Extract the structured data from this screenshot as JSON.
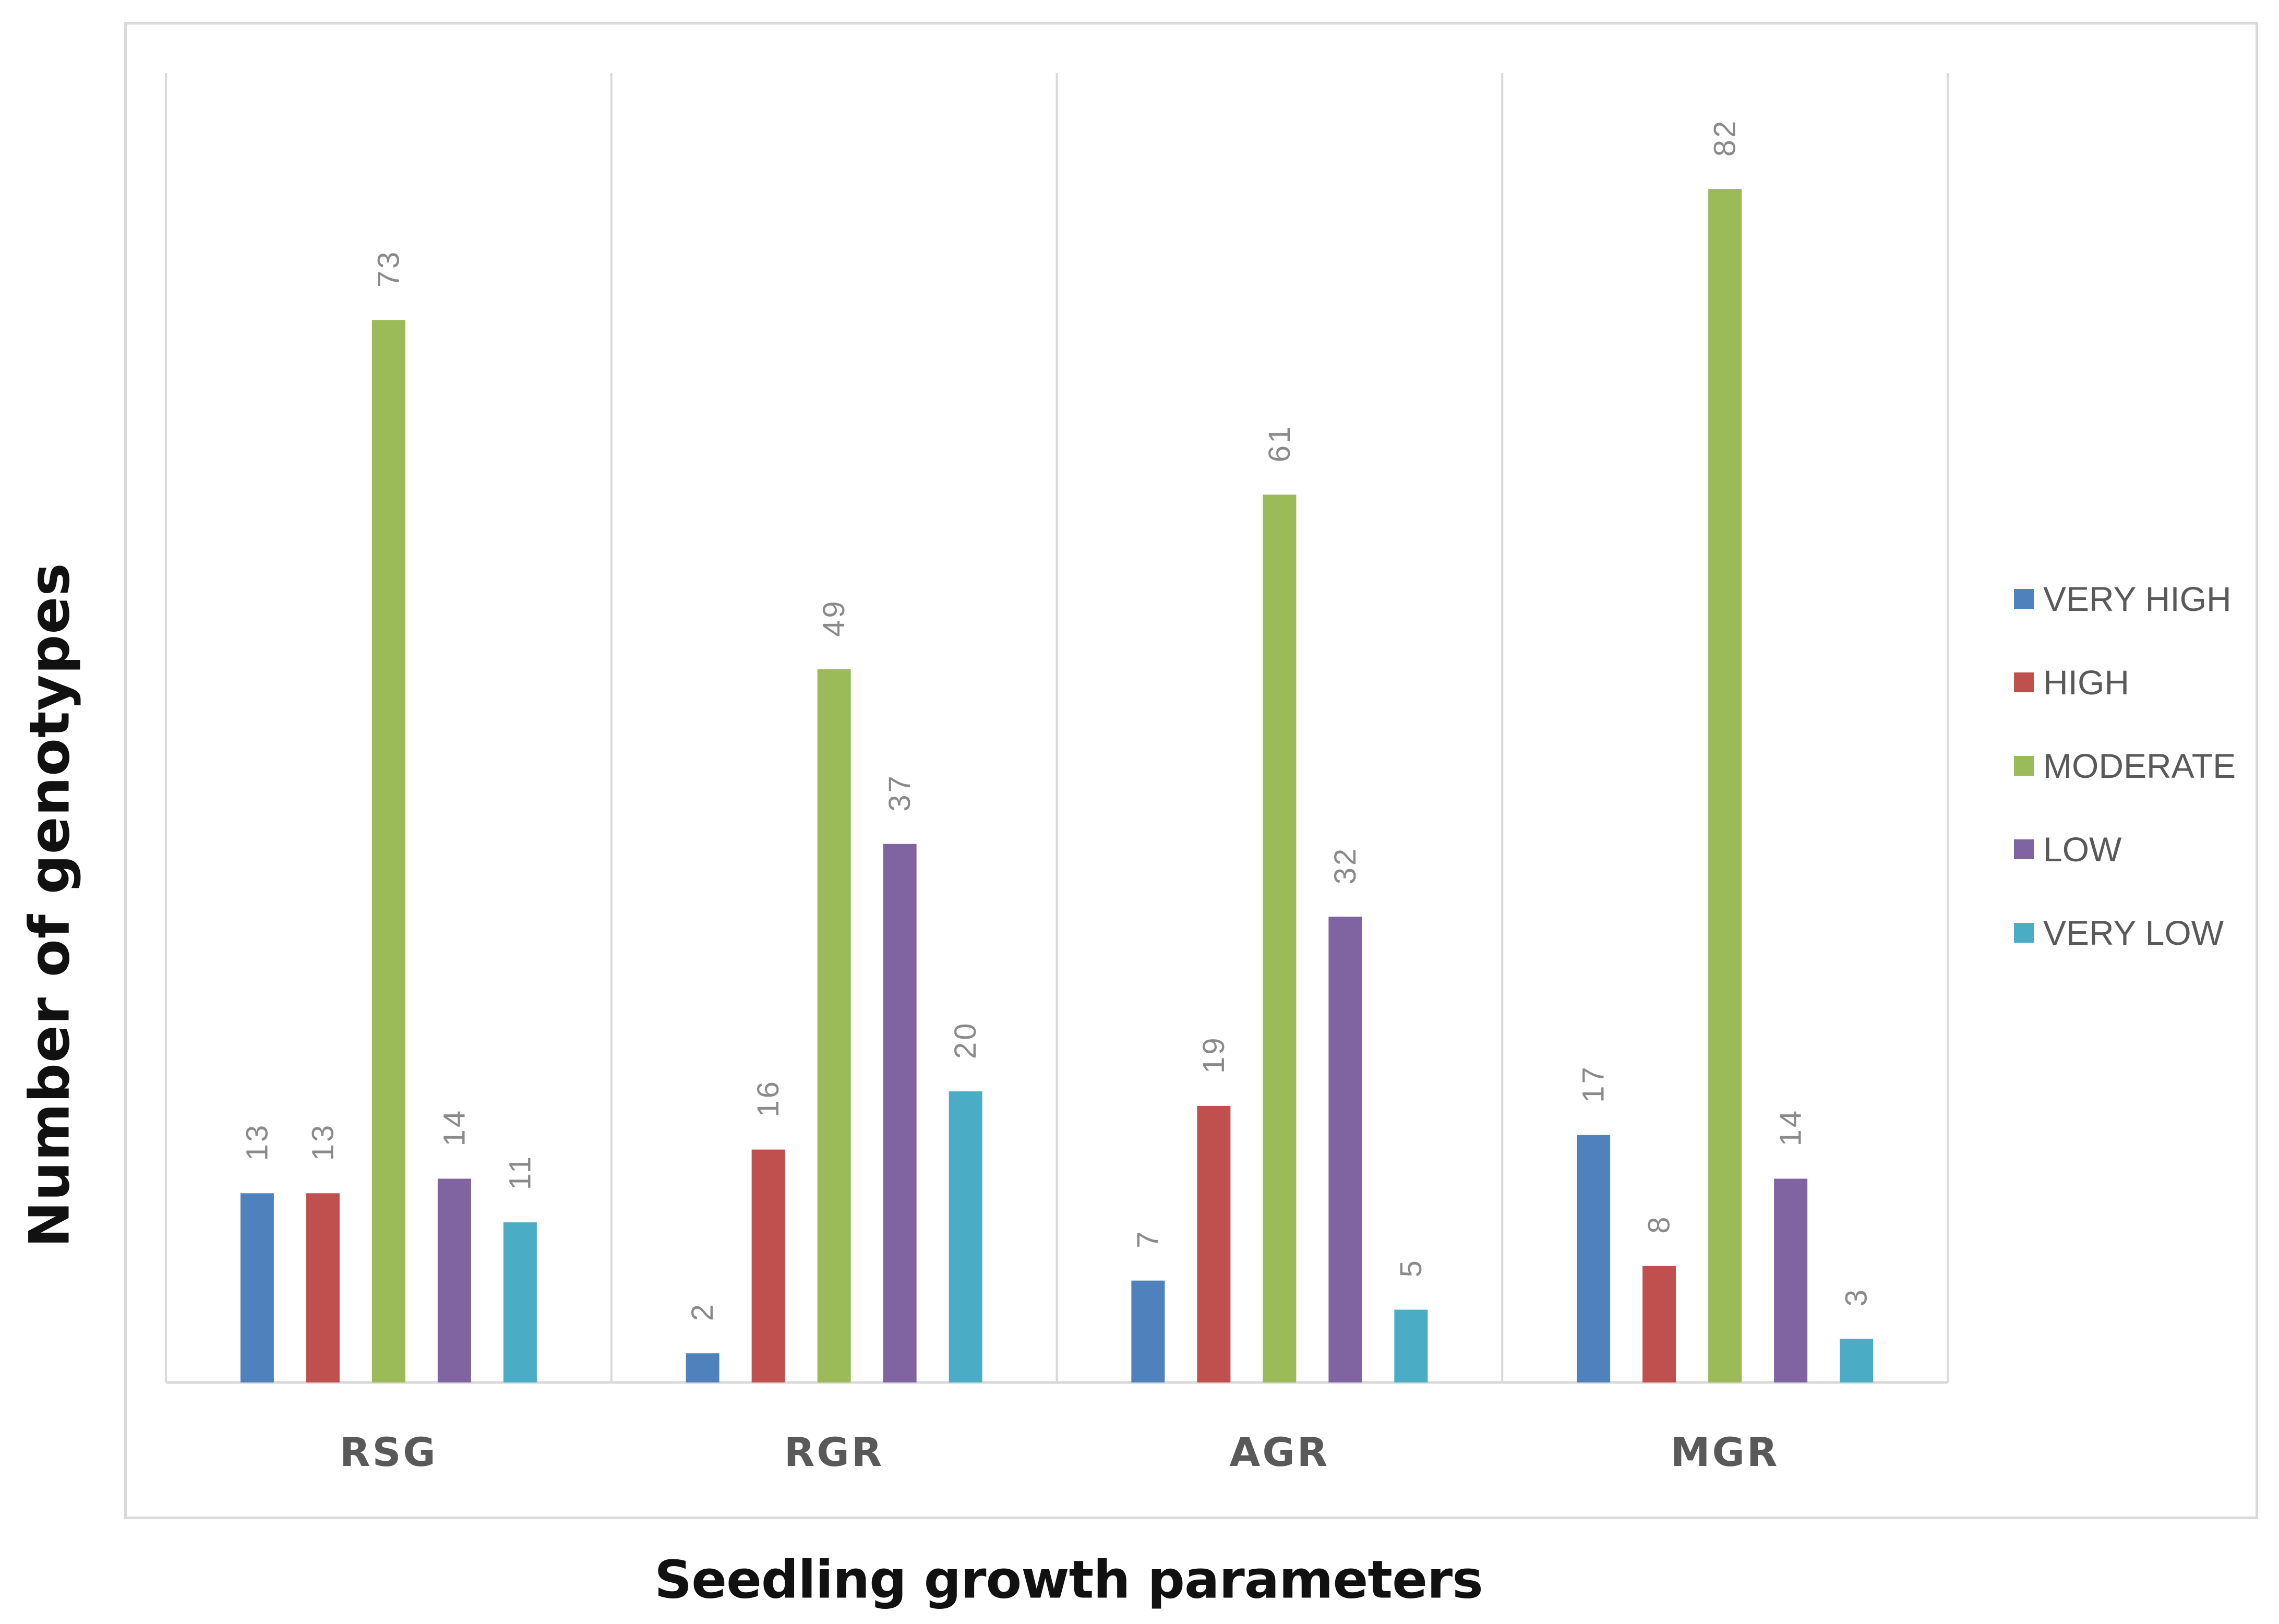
{
  "chart_data": {
    "type": "bar",
    "title": "",
    "xlabel": "Seedling growth parameters",
    "ylabel": "Number of genotypes",
    "categories": [
      "RSG",
      "RGR",
      "AGR",
      "MGR"
    ],
    "series": [
      {
        "name": "VERY HIGH",
        "color": "#4f81bd",
        "values": [
          13,
          2,
          7,
          17
        ]
      },
      {
        "name": "HIGH",
        "color": "#c0504d",
        "values": [
          13,
          16,
          19,
          8
        ]
      },
      {
        "name": "MODERATE",
        "color": "#9bbb59",
        "values": [
          73,
          49,
          61,
          82
        ]
      },
      {
        "name": "LOW",
        "color": "#8064a2",
        "values": [
          14,
          37,
          32,
          14
        ]
      },
      {
        "name": "VERY LOW",
        "color": "#4bacc6",
        "values": [
          11,
          20,
          5,
          3
        ]
      }
    ],
    "ylim": [
      0,
      90
    ],
    "grid": "vertical category separators",
    "legend": "right",
    "data_labels": true
  }
}
